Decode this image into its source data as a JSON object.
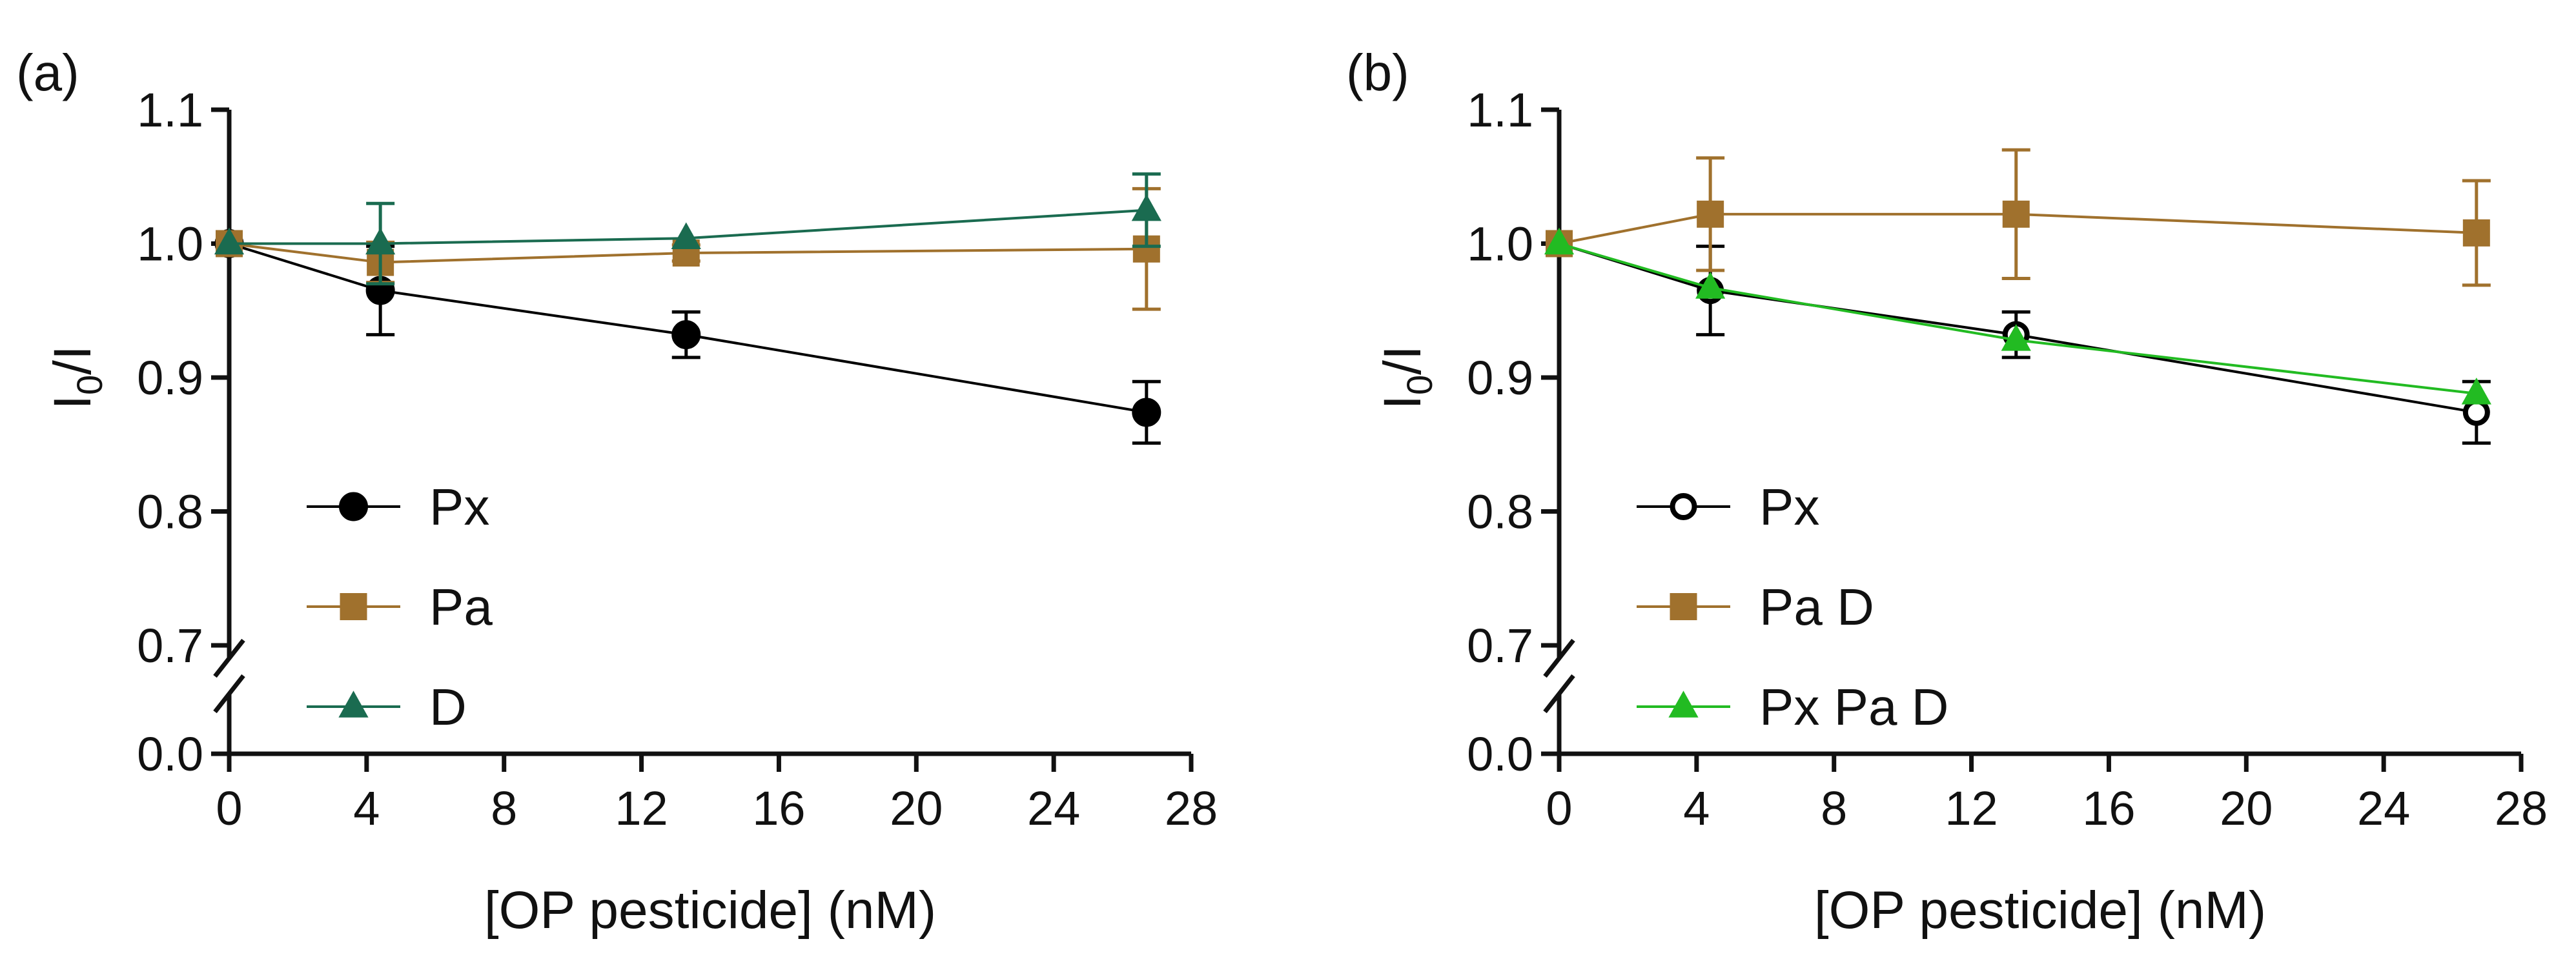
{
  "chart_data": [
    {
      "type": "line",
      "panel_label": "(a)",
      "xlabel": "[OP pesticide] (nM)",
      "ylabel_main": "I",
      "ylabel_sub": "0",
      "ylabel_tail": "/I",
      "xlim": [
        0,
        28
      ],
      "x_ticks": [
        0,
        4,
        8,
        12,
        16,
        20,
        24,
        28
      ],
      "x_tick_labels": [
        "0",
        "4",
        "8",
        "12",
        "16",
        "20",
        "24",
        "28"
      ],
      "ylim_upper": [
        0.7,
        1.1
      ],
      "y_ticks_upper": [
        0.7,
        0.8,
        0.9,
        1.0,
        1.1
      ],
      "y_tick_labels_upper": [
        "0.7",
        "0.8",
        "0.9",
        "1.0",
        "1.1"
      ],
      "y_break": true,
      "y_tick_lower": 0.0,
      "y_tick_label_lower": "0.0",
      "legend_position": "lower-left",
      "series": [
        {
          "name": "Px",
          "marker": "circle-filled",
          "color": "#000000",
          "x": [
            0,
            4.4,
            13.3,
            26.7
          ],
          "y": [
            1.0,
            0.965,
            0.932,
            0.874
          ],
          "err": [
            0,
            0.033,
            0.017,
            0.023
          ]
        },
        {
          "name": "Pa",
          "marker": "square",
          "color": "#A0712D",
          "x": [
            0,
            4.4,
            13.3,
            26.7
          ],
          "y": [
            1.0,
            0.986,
            0.993,
            0.996
          ],
          "err": [
            0,
            0.015,
            0.006,
            0.045
          ]
        },
        {
          "name": "D",
          "marker": "triangle",
          "color": "#1A6B50",
          "x": [
            0,
            4.4,
            13.3,
            26.7
          ],
          "y": [
            1.0,
            1.0,
            1.004,
            1.025
          ],
          "err": [
            0,
            0.03,
            0,
            0.027
          ]
        }
      ]
    },
    {
      "type": "line",
      "panel_label": "(b)",
      "xlabel": "[OP pesticide] (nM)",
      "ylabel_main": "I",
      "ylabel_sub": "0",
      "ylabel_tail": "/I",
      "xlim": [
        0,
        28
      ],
      "x_ticks": [
        0,
        4,
        8,
        12,
        16,
        20,
        24,
        28
      ],
      "x_tick_labels": [
        "0",
        "4",
        "8",
        "12",
        "16",
        "20",
        "24",
        "28"
      ],
      "ylim_upper": [
        0.7,
        1.1
      ],
      "y_ticks_upper": [
        0.7,
        0.8,
        0.9,
        1.0,
        1.1
      ],
      "y_tick_labels_upper": [
        "0.7",
        "0.8",
        "0.9",
        "1.0",
        "1.1"
      ],
      "y_break": true,
      "y_tick_lower": 0.0,
      "y_tick_label_lower": "0.0",
      "legend_position": "lower-left",
      "series": [
        {
          "name": "Px",
          "marker": "circle-open",
          "color": "#000000",
          "x": [
            0,
            4.4,
            13.3,
            26.7
          ],
          "y": [
            1.0,
            0.965,
            0.932,
            0.874
          ],
          "err": [
            0,
            0.033,
            0.017,
            0.023
          ]
        },
        {
          "name": "Pa D",
          "marker": "square",
          "color": "#A0712D",
          "x": [
            0,
            4.4,
            13.3,
            26.7
          ],
          "y": [
            1.0,
            1.022,
            1.022,
            1.008
          ],
          "err": [
            0,
            0.042,
            0.048,
            0.039
          ]
        },
        {
          "name": "Px Pa D",
          "marker": "triangle",
          "color": "#22BB22",
          "x": [
            0,
            4.4,
            13.3,
            26.7
          ],
          "y": [
            1.0,
            0.967,
            0.928,
            0.888
          ],
          "err": [
            0,
            0,
            0,
            0
          ]
        }
      ]
    }
  ]
}
